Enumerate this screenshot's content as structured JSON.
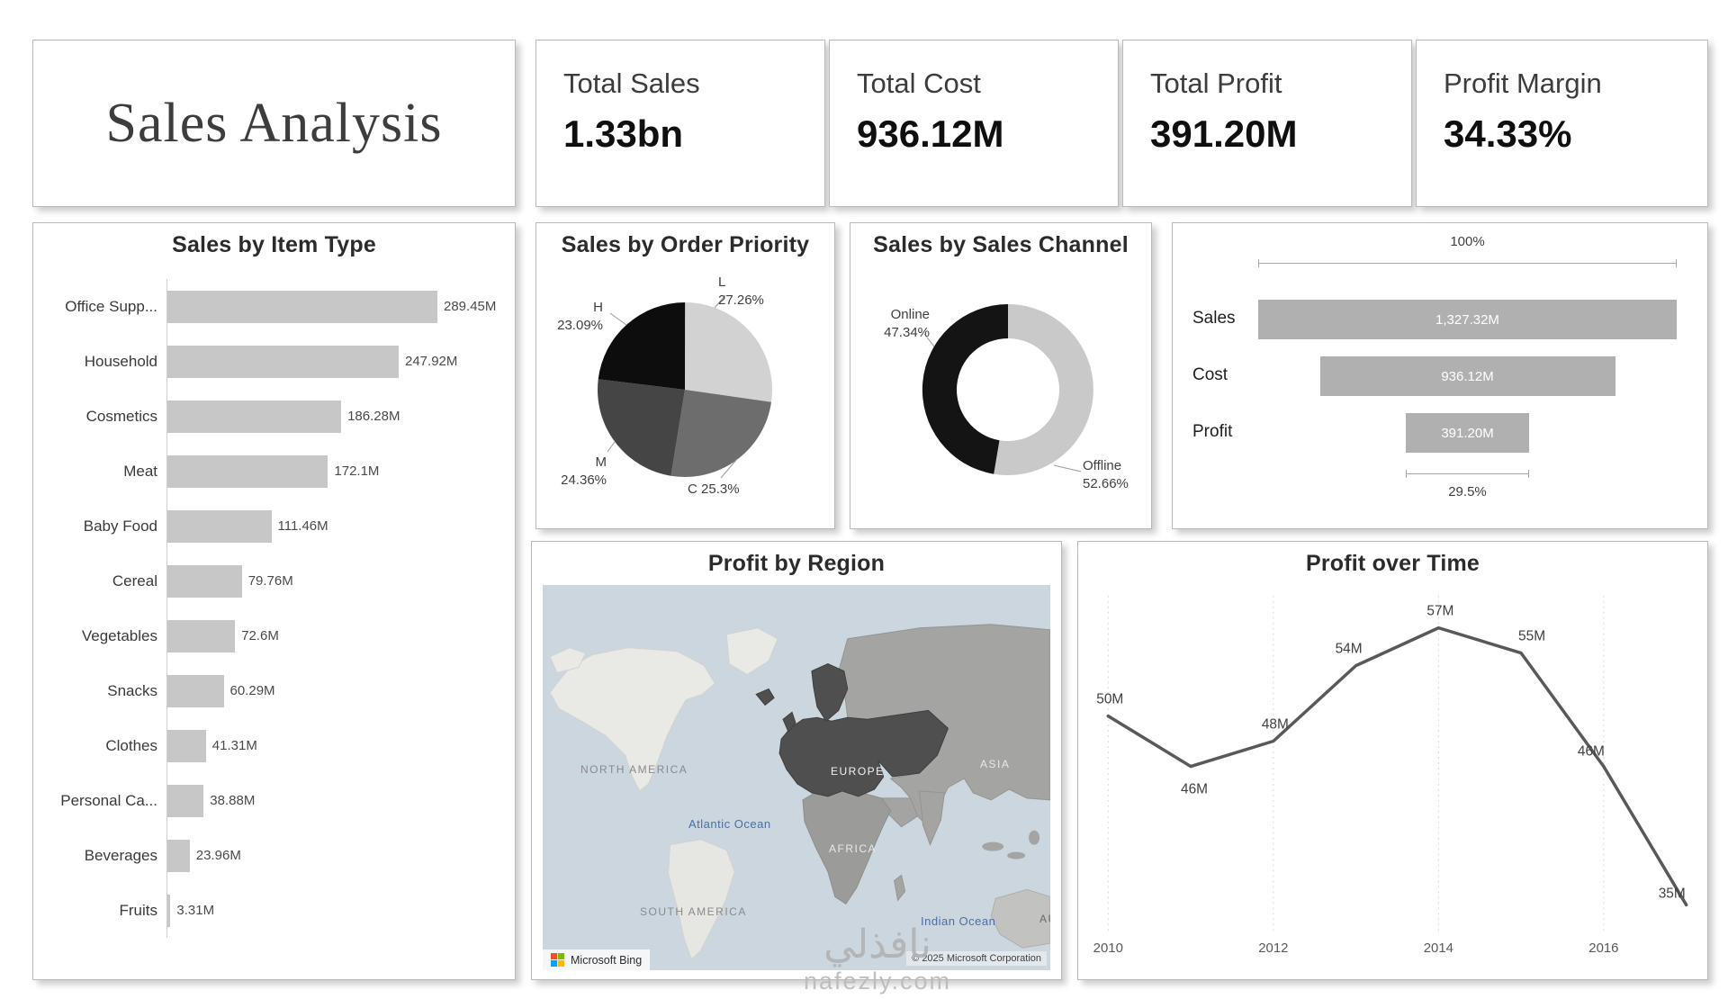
{
  "title": "Sales Analysis",
  "kpis": [
    {
      "label": "Total Sales",
      "value": "1.33bn"
    },
    {
      "label": "Total Cost",
      "value": "936.12M"
    },
    {
      "label": "Total Profit",
      "value": "391.20M"
    },
    {
      "label": "Profit Margin",
      "value": "34.33%"
    }
  ],
  "colors": {
    "bar": "#c7c7c7",
    "funnel_bar": "#b0b0b0",
    "line": "#595959",
    "map_highlight": "#4f4f4f",
    "ocean": "#cbd6de",
    "ms_logo": [
      "#f25022",
      "#7fba00",
      "#00a4ef",
      "#ffb900"
    ]
  },
  "chart_data": [
    {
      "id": "sales_by_item_type",
      "type": "bar",
      "orientation": "horizontal",
      "title": "Sales by Item Type",
      "categories": [
        "Office Supp...",
        "Household",
        "Cosmetics",
        "Meat",
        "Baby Food",
        "Cereal",
        "Vegetables",
        "Snacks",
        "Clothes",
        "Personal Ca...",
        "Beverages",
        "Fruits"
      ],
      "values": [
        289.45,
        247.92,
        186.28,
        172.1,
        111.46,
        79.76,
        72.6,
        60.29,
        41.31,
        38.88,
        23.96,
        3.31
      ],
      "value_labels": [
        "289.45M",
        "247.92M",
        "186.28M",
        "172.1M",
        "111.46M",
        "79.76M",
        "72.6M",
        "60.29M",
        "41.31M",
        "38.88M",
        "23.96M",
        "3.31M"
      ],
      "bar_color": "#c7c7c7",
      "xlim": [
        0,
        289.45
      ]
    },
    {
      "id": "sales_by_order_priority",
      "type": "pie",
      "title": "Sales by Order Priority",
      "slices": [
        {
          "label": "L",
          "pct": 27.26,
          "pct_label": "27.26%",
          "color": "#d2d2d2"
        },
        {
          "label": "C",
          "pct": 25.3,
          "pct_label": "25.3%",
          "color": "#6d6d6d"
        },
        {
          "label": "M",
          "pct": 24.36,
          "pct_label": "24.36%",
          "color": "#454545"
        },
        {
          "label": "H",
          "pct": 23.09,
          "pct_label": "23.09%",
          "color": "#0d0d0d"
        }
      ]
    },
    {
      "id": "sales_by_sales_channel",
      "type": "donut",
      "title": "Sales by Sales Channel",
      "slices": [
        {
          "label": "Offline",
          "pct": 52.66,
          "pct_label": "52.66%",
          "color": "#c9c9c9"
        },
        {
          "label": "Online",
          "pct": 47.34,
          "pct_label": "47.34%",
          "color": "#141414"
        }
      ]
    },
    {
      "id": "sales_funnel",
      "type": "funnel",
      "top_label": "100%",
      "bottom_label": "29.5%",
      "steps": [
        {
          "label": "Sales",
          "value_label": "1,327.32M",
          "pct": 100
        },
        {
          "label": "Cost",
          "value_label": "936.12M",
          "pct": 70.53
        },
        {
          "label": "Profit",
          "value_label": "391.20M",
          "pct": 29.47
        }
      ],
      "bar_color": "#b0b0b0"
    },
    {
      "id": "profit_by_region",
      "type": "map",
      "title": "Profit by Region",
      "highlighted_region": "Europe",
      "region_labels": [
        "NORTH AMERICA",
        "SOUTH AMERICA",
        "EUROPE",
        "ASIA",
        "AFRICA",
        "AU"
      ],
      "ocean_labels": [
        "Atlantic Ocean",
        "Indian Ocean"
      ],
      "attribution": "Microsoft Bing",
      "copyright": "© 2025 Microsoft Corporation"
    },
    {
      "id": "profit_over_time",
      "type": "line",
      "title": "Profit over Time",
      "x": [
        2010,
        2011,
        2012,
        2013,
        2014,
        2015,
        2016,
        2017
      ],
      "values": [
        50,
        46,
        48,
        54,
        57,
        55,
        46,
        35
      ],
      "point_labels": [
        "50M",
        "46M",
        "48M",
        "54M",
        "57M",
        "55M",
        "46M",
        "35M"
      ],
      "x_tick_labels": [
        "2010",
        "2012",
        "2014",
        "2016"
      ],
      "line_color": "#595959",
      "ylim": [
        30,
        60
      ],
      "grid": "dotted-vertical"
    }
  ],
  "watermark": {
    "line1": "نافذلي",
    "line2": "nafezly.com"
  }
}
